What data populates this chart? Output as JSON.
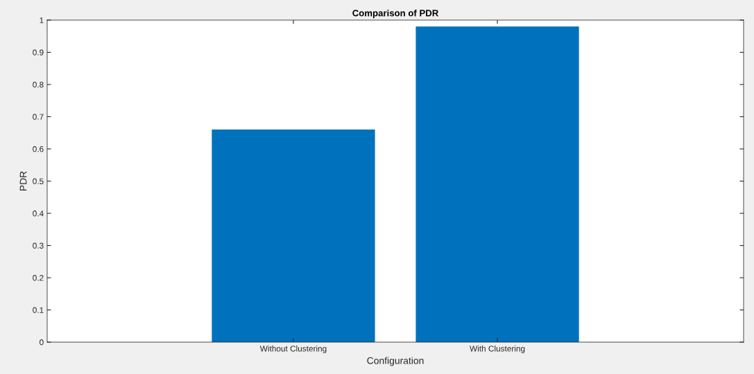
{
  "chart_data": {
    "type": "bar",
    "title": "Comparison of PDR",
    "xlabel": "Configuration",
    "ylabel": "PDR",
    "categories": [
      "Without Clustering",
      "With Clustering"
    ],
    "values": [
      0.66,
      0.98
    ],
    "color": "#0072bd",
    "ylim": [
      0,
      1
    ],
    "yticks": [
      0,
      0.1,
      0.2,
      0.3,
      0.4,
      0.5,
      0.6,
      0.7,
      0.8,
      0.9,
      1
    ],
    "grid": false
  }
}
